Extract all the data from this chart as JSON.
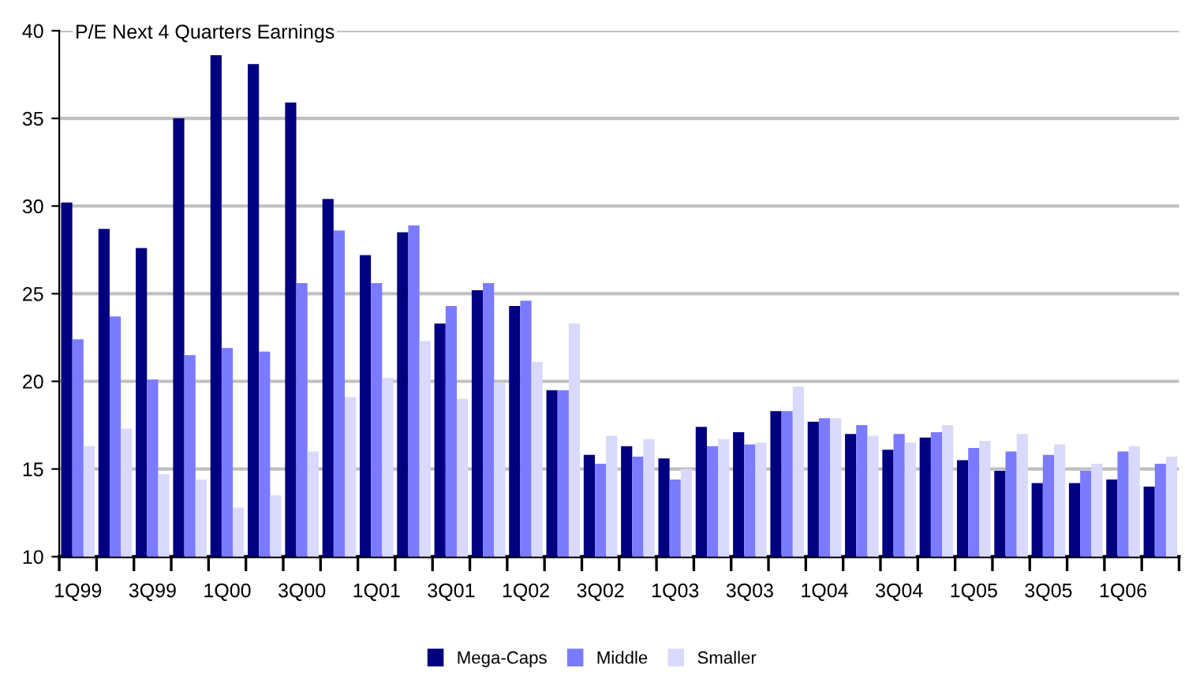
{
  "chart_data": {
    "type": "bar",
    "title": "P/E Next 4 Quarters Earnings",
    "categories": [
      "1Q99",
      null,
      "3Q99",
      null,
      "1Q00",
      null,
      "3Q00",
      null,
      "1Q01",
      null,
      "3Q01",
      null,
      "1Q02",
      null,
      "3Q02",
      null,
      "1Q03",
      null,
      "3Q03",
      null,
      "1Q04",
      null,
      "3Q04",
      null,
      "1Q05",
      null,
      "3Q05",
      null,
      "1Q06",
      null
    ],
    "series": [
      {
        "name": "Mega-Caps",
        "color": "#000080",
        "values": [
          30.2,
          28.7,
          27.6,
          35.0,
          38.6,
          38.1,
          35.9,
          30.4,
          27.2,
          28.5,
          23.3,
          25.2,
          24.3,
          19.5,
          15.8,
          16.3,
          15.6,
          17.4,
          17.1,
          18.3,
          17.7,
          17.0,
          16.1,
          16.8,
          15.5,
          14.9,
          14.2,
          14.2,
          14.4,
          14.0
        ]
      },
      {
        "name": "Middle",
        "color": "#7b7bff",
        "values": [
          22.4,
          23.7,
          20.1,
          21.5,
          21.9,
          21.7,
          25.6,
          28.6,
          25.6,
          28.9,
          24.3,
          25.6,
          24.6,
          19.5,
          15.3,
          15.7,
          14.4,
          16.3,
          16.4,
          18.3,
          17.9,
          17.5,
          17.0,
          17.1,
          16.2,
          16.0,
          15.8,
          14.9,
          16.0,
          15.3
        ]
      },
      {
        "name": "Smaller",
        "color": "#d9d9fb",
        "values": [
          16.3,
          17.3,
          14.7,
          14.4,
          12.8,
          13.5,
          16.0,
          19.1,
          20.2,
          22.3,
          19.0,
          19.9,
          21.1,
          23.3,
          16.9,
          16.7,
          15.0,
          16.7,
          16.5,
          19.7,
          17.9,
          16.9,
          16.5,
          17.5,
          16.6,
          17.0,
          16.4,
          15.3,
          16.3,
          15.7
        ]
      }
    ],
    "ylim": [
      10,
      40
    ],
    "yticks": [
      10,
      15,
      20,
      25,
      30,
      35,
      40
    ],
    "grid": "y",
    "legend": "bottom"
  }
}
